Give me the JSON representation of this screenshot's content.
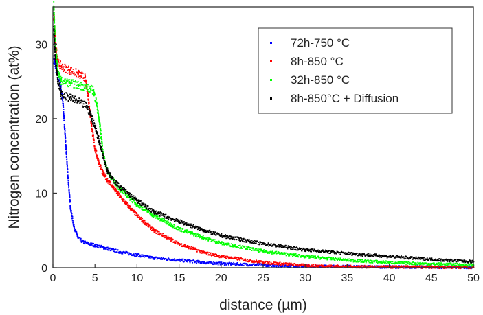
{
  "chart_data": {
    "type": "scatter",
    "xlabel": "distance (µm)",
    "ylabel": "Nitrogen concentration (at%)",
    "xlim": [
      0,
      50
    ],
    "ylim": [
      0,
      35
    ],
    "x_ticks": [
      0,
      5,
      10,
      15,
      20,
      25,
      30,
      35,
      40,
      45,
      50
    ],
    "y_ticks": [
      0,
      10,
      20,
      30
    ],
    "grid": false,
    "legend_position": "top-right",
    "series": [
      {
        "name": "72h-750 °C",
        "color": "#0000ff",
        "points": [
          [
            0.1,
            28
          ],
          [
            0.3,
            27
          ],
          [
            0.6,
            25.5
          ],
          [
            0.9,
            24.5
          ],
          [
            1.2,
            22
          ],
          [
            1.5,
            17
          ],
          [
            1.8,
            12
          ],
          [
            2.1,
            8
          ],
          [
            2.5,
            5.5
          ],
          [
            3,
            4
          ],
          [
            3.5,
            3.5
          ],
          [
            4,
            3.3
          ],
          [
            5,
            3
          ],
          [
            6,
            2.7
          ],
          [
            7,
            2.4
          ],
          [
            8,
            2.1
          ],
          [
            10,
            1.7
          ],
          [
            12,
            1.3
          ],
          [
            15,
            1
          ],
          [
            18,
            0.7
          ],
          [
            20,
            0.55
          ],
          [
            25,
            0.35
          ],
          [
            30,
            0.2
          ],
          [
            35,
            0.15
          ],
          [
            40,
            0.1
          ],
          [
            50,
            0.05
          ]
        ]
      },
      {
        "name": "8h-850 °C",
        "color": "#ff0000",
        "points": [
          [
            0.1,
            34
          ],
          [
            0.3,
            30
          ],
          [
            0.6,
            27.5
          ],
          [
            1,
            27
          ],
          [
            2,
            26.5
          ],
          [
            3,
            26
          ],
          [
            3.8,
            25.5
          ],
          [
            4.2,
            23
          ],
          [
            4.6,
            19
          ],
          [
            5,
            16
          ],
          [
            5.5,
            14
          ],
          [
            6,
            12.5
          ],
          [
            7,
            11
          ],
          [
            8,
            9.5
          ],
          [
            10,
            7
          ],
          [
            12,
            5
          ],
          [
            15,
            3.2
          ],
          [
            18,
            2
          ],
          [
            20,
            1.5
          ],
          [
            25,
            0.7
          ],
          [
            30,
            0.3
          ],
          [
            35,
            0.15
          ],
          [
            40,
            0.1
          ],
          [
            50,
            0.05
          ]
        ]
      },
      {
        "name": "32h-850 °C",
        "color": "#00ff00",
        "points": [
          [
            0.1,
            35
          ],
          [
            0.3,
            30
          ],
          [
            0.6,
            26
          ],
          [
            1,
            25
          ],
          [
            2,
            24.8
          ],
          [
            3,
            24.5
          ],
          [
            4,
            24.2
          ],
          [
            4.8,
            23.8
          ],
          [
            5.2,
            22
          ],
          [
            5.6,
            19
          ],
          [
            6,
            15
          ],
          [
            6.5,
            13
          ],
          [
            7,
            12
          ],
          [
            8,
            10.5
          ],
          [
            10,
            8.5
          ],
          [
            12,
            7
          ],
          [
            15,
            5.2
          ],
          [
            18,
            4
          ],
          [
            20,
            3.3
          ],
          [
            25,
            2.2
          ],
          [
            30,
            1.5
          ],
          [
            35,
            1
          ],
          [
            40,
            0.7
          ],
          [
            45,
            0.5
          ],
          [
            50,
            0.35
          ]
        ]
      },
      {
        "name": "8h-850°C + Diffusion",
        "color": "#000000",
        "points": [
          [
            0.1,
            32
          ],
          [
            0.3,
            28
          ],
          [
            0.6,
            25
          ],
          [
            1,
            23.2
          ],
          [
            2,
            22.8
          ],
          [
            3,
            22.3
          ],
          [
            4,
            21.7
          ],
          [
            4.5,
            20.5
          ],
          [
            5,
            19
          ],
          [
            5.5,
            17
          ],
          [
            6,
            15
          ],
          [
            6.5,
            13
          ],
          [
            7,
            12
          ],
          [
            8,
            10.8
          ],
          [
            10,
            9
          ],
          [
            12,
            7.5
          ],
          [
            15,
            6.2
          ],
          [
            18,
            5
          ],
          [
            20,
            4.3
          ],
          [
            25,
            3.2
          ],
          [
            30,
            2.4
          ],
          [
            35,
            1.9
          ],
          [
            40,
            1.5
          ],
          [
            45,
            1.1
          ],
          [
            50,
            0.8
          ]
        ]
      }
    ]
  }
}
